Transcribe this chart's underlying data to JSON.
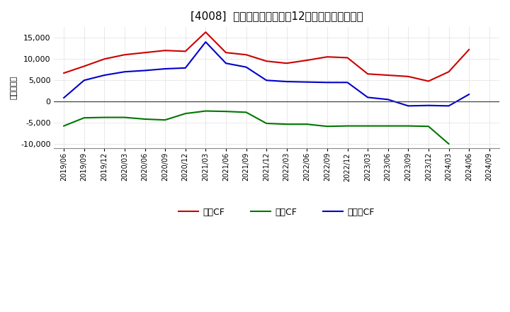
{
  "title": "[4008]  キャッシュフローの12か月移動合計の推移",
  "ylabel": "（百万円）",
  "x_labels": [
    "2019/06",
    "2019/09",
    "2019/12",
    "2020/03",
    "2020/06",
    "2020/09",
    "2020/12",
    "2021/03",
    "2021/06",
    "2021/09",
    "2021/12",
    "2022/03",
    "2022/06",
    "2022/09",
    "2022/12",
    "2023/03",
    "2023/06",
    "2023/09",
    "2023/12",
    "2024/03",
    "2024/06",
    "2024/09"
  ],
  "eigyo_cf": [
    6700,
    8300,
    10000,
    11000,
    11500,
    12000,
    11800,
    16300,
    11500,
    11000,
    9500,
    9000,
    9700,
    10500,
    10300,
    6500,
    6200,
    5900,
    4800,
    7000,
    12200,
    null
  ],
  "toshi_cf": [
    -5700,
    -3800,
    -3700,
    -3700,
    -4100,
    -4300,
    -2800,
    -2200,
    -2300,
    -2500,
    -5100,
    -5300,
    -5300,
    -5800,
    -5700,
    -5700,
    -5700,
    -5700,
    -5800,
    -9900,
    null,
    null
  ],
  "free_cf": [
    900,
    5000,
    6200,
    7000,
    7300,
    7700,
    7900,
    14000,
    9000,
    8100,
    5000,
    4700,
    4600,
    4500,
    4500,
    1000,
    500,
    -1000,
    -900,
    -1000,
    1700,
    null
  ],
  "eigyo_color": "#cc0000",
  "toshi_color": "#007700",
  "free_color": "#0000cc",
  "ylim": [
    -11000,
    17500
  ],
  "yticks": [
    -10000,
    -5000,
    0,
    5000,
    10000,
    15000
  ],
  "bg_color": "#ffffff",
  "grid_color": "#aaaaaa",
  "title_fontsize": 11,
  "axis_fontsize": 8,
  "legend_fontsize": 9,
  "legend_labels": [
    "営業CF",
    "投資CF",
    "フリーCF"
  ]
}
